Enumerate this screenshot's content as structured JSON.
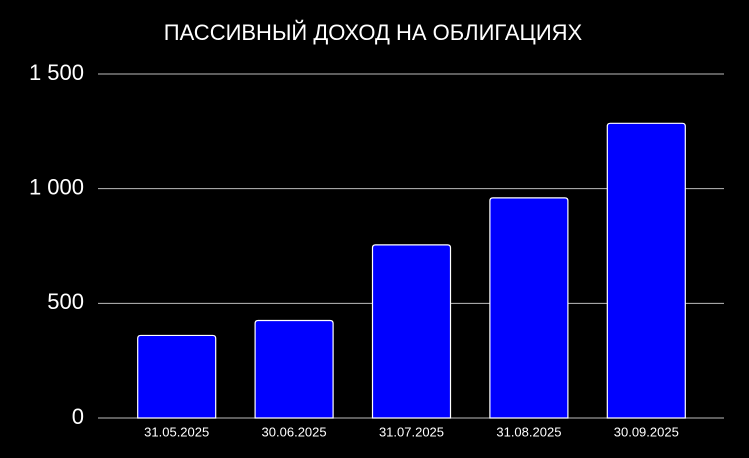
{
  "chart_data": {
    "type": "bar",
    "title": "ПАССИВНЫЙ ДОХОД НА ОБЛИГАЦИЯХ",
    "categories": [
      "31.05.2025",
      "30.06.2025",
      "31.07.2025",
      "31.08.2025",
      "30.09.2025"
    ],
    "values": [
      360,
      425,
      755,
      960,
      1285
    ],
    "color": "#0000ff",
    "ylim": [
      0,
      1500
    ],
    "yticks": [
      0,
      500,
      {
        "value": 1000,
        "label": "1 000"
      },
      {
        "value": 1500,
        "label": "1 500"
      }
    ],
    "grid": true
  }
}
